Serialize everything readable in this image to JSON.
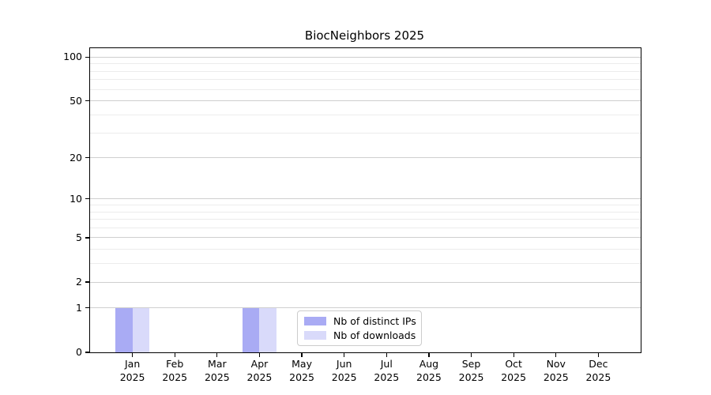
{
  "title": "BiocNeighbors 2025",
  "colors": {
    "distinct_ips": "#a9abf4",
    "downloads": "#d9dafa",
    "grid_major": "#cfcfcf",
    "grid_minor": "#ececec",
    "axis": "#000000",
    "background": "#ffffff"
  },
  "legend": {
    "items": [
      {
        "label": "Nb of distinct IPs",
        "color": "#a9abf4"
      },
      {
        "label": "Nb of downloads",
        "color": "#d9dafa"
      }
    ]
  },
  "chart_data": {
    "type": "bar",
    "title": "BiocNeighbors 2025",
    "scale": "log1p",
    "categories": [
      "Jan 2025",
      "Feb 2025",
      "Mar 2025",
      "Apr 2025",
      "May 2025",
      "Jun 2025",
      "Jul 2025",
      "Aug 2025",
      "Sep 2025",
      "Oct 2025",
      "Nov 2025",
      "Dec 2025"
    ],
    "series": [
      {
        "name": "Nb of distinct IPs",
        "color": "#a9abf4",
        "values": [
          1,
          0,
          0,
          1,
          0,
          0,
          0,
          0,
          0,
          0,
          0,
          0
        ]
      },
      {
        "name": "Nb of downloads",
        "color": "#d9dafa",
        "values": [
          1,
          0,
          0,
          1,
          0,
          0,
          0,
          0,
          0,
          0,
          0,
          0
        ]
      }
    ],
    "xlabel": "",
    "ylabel": "",
    "yticks": [
      0,
      1,
      2,
      5,
      10,
      20,
      50,
      100
    ],
    "ylim": [
      0,
      115.3
    ],
    "grid": {
      "major": [
        1,
        2,
        5,
        10,
        20,
        50,
        100
      ],
      "minor": [
        3,
        4,
        6,
        7,
        8,
        9,
        30,
        40,
        60,
        70,
        80,
        90
      ]
    },
    "legend_position": "lower center-left inside plot"
  }
}
